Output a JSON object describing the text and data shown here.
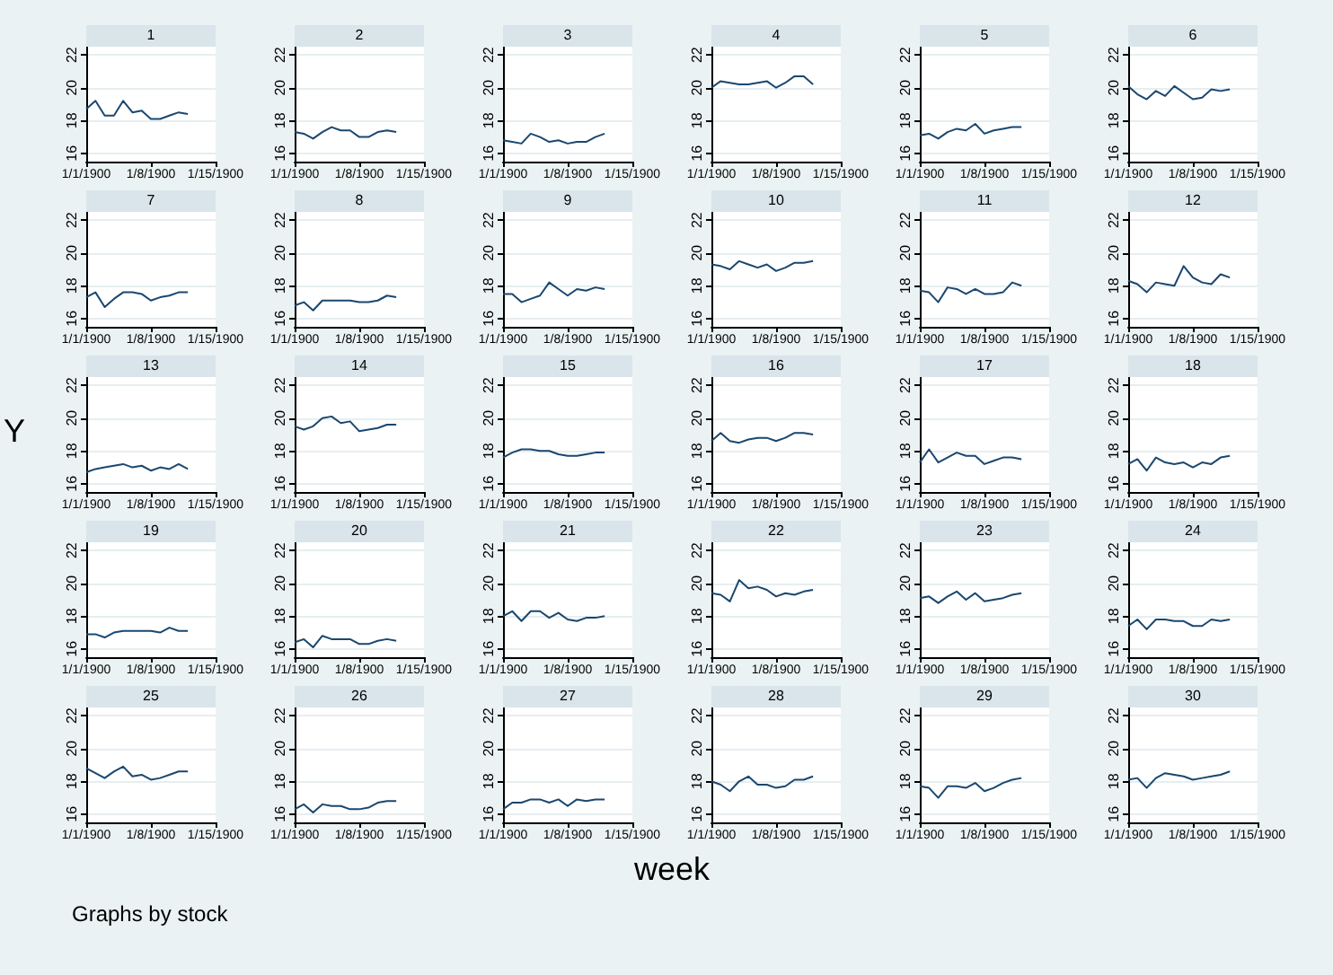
{
  "chart_data": [
    {
      "type": "line",
      "title": "1",
      "values": [
        18.7,
        19.2,
        18.3,
        18.3,
        19.2,
        18.5,
        18.6,
        18.1,
        18.1,
        18.3,
        18.5,
        18.4
      ],
      "color": "#1a476f",
      "x": [
        "1900-01-01",
        "1900-01-02",
        "1900-01-03",
        "1900-01-04",
        "1900-01-05",
        "1900-01-06",
        "1900-01-07",
        "1900-01-08",
        "1900-01-09",
        "1900-01-10",
        "1900-01-11",
        "1900-01-12"
      ],
      "xlim": [
        "1900-01-01",
        "1900-01-15"
      ],
      "xticks": [
        {
          "value": "1900-01-01",
          "label": "1/1/1900"
        },
        {
          "value": "1900-01-08",
          "label": "1/8/1900"
        },
        {
          "value": "1900-01-15",
          "label": "1/15/1900"
        }
      ],
      "ylim": [
        15.5,
        22.5
      ],
      "yticks": [
        16,
        18,
        20,
        22
      ],
      "grid": "y"
    },
    {
      "type": "line",
      "title": "2",
      "values": [
        17.3,
        17.2,
        16.9,
        17.3,
        17.6,
        17.4,
        17.4,
        17.0,
        17.0,
        17.3,
        17.4,
        17.3
      ],
      "color": "#1a476f",
      "x": [
        "1900-01-01",
        "1900-01-02",
        "1900-01-03",
        "1900-01-04",
        "1900-01-05",
        "1900-01-06",
        "1900-01-07",
        "1900-01-08",
        "1900-01-09",
        "1900-01-10",
        "1900-01-11",
        "1900-01-12"
      ],
      "xlim": [
        "1900-01-01",
        "1900-01-15"
      ],
      "xticks": [
        {
          "value": "1900-01-01",
          "label": "1/1/1900"
        },
        {
          "value": "1900-01-08",
          "label": "1/8/1900"
        },
        {
          "value": "1900-01-15",
          "label": "1/15/1900"
        }
      ],
      "ylim": [
        15.5,
        22.5
      ],
      "yticks": [
        16,
        18,
        20,
        22
      ],
      "grid": "y"
    },
    {
      "type": "line",
      "title": "3",
      "values": [
        16.8,
        16.7,
        16.6,
        17.2,
        17.0,
        16.7,
        16.8,
        16.6,
        16.7,
        16.7,
        17.0,
        17.2
      ],
      "color": "#1a476f",
      "x": [
        "1900-01-01",
        "1900-01-02",
        "1900-01-03",
        "1900-01-04",
        "1900-01-05",
        "1900-01-06",
        "1900-01-07",
        "1900-01-08",
        "1900-01-09",
        "1900-01-10",
        "1900-01-11",
        "1900-01-12"
      ],
      "xlim": [
        "1900-01-01",
        "1900-01-15"
      ],
      "xticks": [
        {
          "value": "1900-01-01",
          "label": "1/1/1900"
        },
        {
          "value": "1900-01-08",
          "label": "1/8/1900"
        },
        {
          "value": "1900-01-15",
          "label": "1/15/1900"
        }
      ],
      "ylim": [
        15.5,
        22.5
      ],
      "yticks": [
        16,
        18,
        20,
        22
      ],
      "grid": "y"
    },
    {
      "type": "line",
      "title": "4",
      "values": [
        20.0,
        20.4,
        20.3,
        20.2,
        20.2,
        20.3,
        20.4,
        20.0,
        20.3,
        20.7,
        20.7,
        20.2
      ],
      "color": "#1a476f",
      "x": [
        "1900-01-01",
        "1900-01-02",
        "1900-01-03",
        "1900-01-04",
        "1900-01-05",
        "1900-01-06",
        "1900-01-07",
        "1900-01-08",
        "1900-01-09",
        "1900-01-10",
        "1900-01-11",
        "1900-01-12"
      ],
      "xlim": [
        "1900-01-01",
        "1900-01-15"
      ],
      "xticks": [
        {
          "value": "1900-01-01",
          "label": "1/1/1900"
        },
        {
          "value": "1900-01-08",
          "label": "1/8/1900"
        },
        {
          "value": "1900-01-15",
          "label": "1/15/1900"
        }
      ],
      "ylim": [
        15.5,
        22.5
      ],
      "yticks": [
        16,
        18,
        20,
        22
      ],
      "grid": "y"
    },
    {
      "type": "line",
      "title": "5",
      "values": [
        17.1,
        17.2,
        16.9,
        17.3,
        17.5,
        17.4,
        17.8,
        17.2,
        17.4,
        17.5,
        17.6,
        17.6
      ],
      "color": "#1a476f",
      "x": [
        "1900-01-01",
        "1900-01-02",
        "1900-01-03",
        "1900-01-04",
        "1900-01-05",
        "1900-01-06",
        "1900-01-07",
        "1900-01-08",
        "1900-01-09",
        "1900-01-10",
        "1900-01-11",
        "1900-01-12"
      ],
      "xlim": [
        "1900-01-01",
        "1900-01-15"
      ],
      "xticks": [
        {
          "value": "1900-01-01",
          "label": "1/1/1900"
        },
        {
          "value": "1900-01-08",
          "label": "1/8/1900"
        },
        {
          "value": "1900-01-15",
          "label": "1/15/1900"
        }
      ],
      "ylim": [
        15.5,
        22.5
      ],
      "yticks": [
        16,
        18,
        20,
        22
      ],
      "grid": "y"
    },
    {
      "type": "line",
      "title": "6",
      "values": [
        20.1,
        19.6,
        19.3,
        19.8,
        19.5,
        20.1,
        19.7,
        19.3,
        19.4,
        19.9,
        19.8,
        19.9
      ],
      "color": "#1a476f",
      "x": [
        "1900-01-01",
        "1900-01-02",
        "1900-01-03",
        "1900-01-04",
        "1900-01-05",
        "1900-01-06",
        "1900-01-07",
        "1900-01-08",
        "1900-01-09",
        "1900-01-10",
        "1900-01-11",
        "1900-01-12"
      ],
      "xlim": [
        "1900-01-01",
        "1900-01-15"
      ],
      "xticks": [
        {
          "value": "1900-01-01",
          "label": "1/1/1900"
        },
        {
          "value": "1900-01-08",
          "label": "1/8/1900"
        },
        {
          "value": "1900-01-15",
          "label": "1/15/1900"
        }
      ],
      "ylim": [
        15.5,
        22.5
      ],
      "yticks": [
        16,
        18,
        20,
        22
      ],
      "grid": "y"
    },
    {
      "type": "line",
      "title": "7",
      "values": [
        17.3,
        17.6,
        16.7,
        17.2,
        17.6,
        17.6,
        17.5,
        17.1,
        17.3,
        17.4,
        17.6,
        17.6
      ],
      "color": "#1a476f",
      "x": [
        "1900-01-01",
        "1900-01-02",
        "1900-01-03",
        "1900-01-04",
        "1900-01-05",
        "1900-01-06",
        "1900-01-07",
        "1900-01-08",
        "1900-01-09",
        "1900-01-10",
        "1900-01-11",
        "1900-01-12"
      ],
      "xlim": [
        "1900-01-01",
        "1900-01-15"
      ],
      "xticks": [
        {
          "value": "1900-01-01",
          "label": "1/1/1900"
        },
        {
          "value": "1900-01-08",
          "label": "1/8/1900"
        },
        {
          "value": "1900-01-15",
          "label": "1/15/1900"
        }
      ],
      "ylim": [
        15.5,
        22.5
      ],
      "yticks": [
        16,
        18,
        20,
        22
      ],
      "grid": "y"
    },
    {
      "type": "line",
      "title": "8",
      "values": [
        16.8,
        17.0,
        16.5,
        17.1,
        17.1,
        17.1,
        17.1,
        17.0,
        17.0,
        17.1,
        17.4,
        17.3
      ],
      "color": "#1a476f",
      "x": [
        "1900-01-01",
        "1900-01-02",
        "1900-01-03",
        "1900-01-04",
        "1900-01-05",
        "1900-01-06",
        "1900-01-07",
        "1900-01-08",
        "1900-01-09",
        "1900-01-10",
        "1900-01-11",
        "1900-01-12"
      ],
      "xlim": [
        "1900-01-01",
        "1900-01-15"
      ],
      "xticks": [
        {
          "value": "1900-01-01",
          "label": "1/1/1900"
        },
        {
          "value": "1900-01-08",
          "label": "1/8/1900"
        },
        {
          "value": "1900-01-15",
          "label": "1/15/1900"
        }
      ],
      "ylim": [
        15.5,
        22.5
      ],
      "yticks": [
        16,
        18,
        20,
        22
      ],
      "grid": "y"
    },
    {
      "type": "line",
      "title": "9",
      "values": [
        17.5,
        17.5,
        17.0,
        17.2,
        17.4,
        18.2,
        17.8,
        17.4,
        17.8,
        17.7,
        17.9,
        17.8
      ],
      "color": "#1a476f",
      "x": [
        "1900-01-01",
        "1900-01-02",
        "1900-01-03",
        "1900-01-04",
        "1900-01-05",
        "1900-01-06",
        "1900-01-07",
        "1900-01-08",
        "1900-01-09",
        "1900-01-10",
        "1900-01-11",
        "1900-01-12"
      ],
      "xlim": [
        "1900-01-01",
        "1900-01-15"
      ],
      "xticks": [
        {
          "value": "1900-01-01",
          "label": "1/1/1900"
        },
        {
          "value": "1900-01-08",
          "label": "1/8/1900"
        },
        {
          "value": "1900-01-15",
          "label": "1/15/1900"
        }
      ],
      "ylim": [
        15.5,
        22.5
      ],
      "yticks": [
        16,
        18,
        20,
        22
      ],
      "grid": "y"
    },
    {
      "type": "line",
      "title": "10",
      "values": [
        19.3,
        19.2,
        19.0,
        19.5,
        19.3,
        19.1,
        19.3,
        18.9,
        19.1,
        19.4,
        19.4,
        19.5
      ],
      "color": "#1a476f",
      "x": [
        "1900-01-01",
        "1900-01-02",
        "1900-01-03",
        "1900-01-04",
        "1900-01-05",
        "1900-01-06",
        "1900-01-07",
        "1900-01-08",
        "1900-01-09",
        "1900-01-10",
        "1900-01-11",
        "1900-01-12"
      ],
      "xlim": [
        "1900-01-01",
        "1900-01-15"
      ],
      "xticks": [
        {
          "value": "1900-01-01",
          "label": "1/1/1900"
        },
        {
          "value": "1900-01-08",
          "label": "1/8/1900"
        },
        {
          "value": "1900-01-15",
          "label": "1/15/1900"
        }
      ],
      "ylim": [
        15.5,
        22.5
      ],
      "yticks": [
        16,
        18,
        20,
        22
      ],
      "grid": "y"
    },
    {
      "type": "line",
      "title": "11",
      "values": [
        17.7,
        17.6,
        17.0,
        17.9,
        17.8,
        17.5,
        17.8,
        17.5,
        17.5,
        17.6,
        18.2,
        18.0
      ],
      "color": "#1a476f",
      "x": [
        "1900-01-01",
        "1900-01-02",
        "1900-01-03",
        "1900-01-04",
        "1900-01-05",
        "1900-01-06",
        "1900-01-07",
        "1900-01-08",
        "1900-01-09",
        "1900-01-10",
        "1900-01-11",
        "1900-01-12"
      ],
      "xlim": [
        "1900-01-01",
        "1900-01-15"
      ],
      "xticks": [
        {
          "value": "1900-01-01",
          "label": "1/1/1900"
        },
        {
          "value": "1900-01-08",
          "label": "1/8/1900"
        },
        {
          "value": "1900-01-15",
          "label": "1/15/1900"
        }
      ],
      "ylim": [
        15.5,
        22.5
      ],
      "yticks": [
        16,
        18,
        20,
        22
      ],
      "grid": "y"
    },
    {
      "type": "line",
      "title": "12",
      "values": [
        18.3,
        18.1,
        17.6,
        18.2,
        18.1,
        18.0,
        19.2,
        18.5,
        18.2,
        18.1,
        18.7,
        18.5
      ],
      "color": "#1a476f",
      "x": [
        "1900-01-01",
        "1900-01-02",
        "1900-01-03",
        "1900-01-04",
        "1900-01-05",
        "1900-01-06",
        "1900-01-07",
        "1900-01-08",
        "1900-01-09",
        "1900-01-10",
        "1900-01-11",
        "1900-01-12"
      ],
      "xlim": [
        "1900-01-01",
        "1900-01-15"
      ],
      "xticks": [
        {
          "value": "1900-01-01",
          "label": "1/1/1900"
        },
        {
          "value": "1900-01-08",
          "label": "1/8/1900"
        },
        {
          "value": "1900-01-15",
          "label": "1/15/1900"
        }
      ],
      "ylim": [
        15.5,
        22.5
      ],
      "yticks": [
        16,
        18,
        20,
        22
      ],
      "grid": "y"
    },
    {
      "type": "line",
      "title": "13",
      "ylabel": "Y",
      "values": [
        16.7,
        16.9,
        17.0,
        17.1,
        17.2,
        17.0,
        17.1,
        16.8,
        17.0,
        16.9,
        17.2,
        16.9
      ],
      "color": "#1a476f",
      "x": [
        "1900-01-01",
        "1900-01-02",
        "1900-01-03",
        "1900-01-04",
        "1900-01-05",
        "1900-01-06",
        "1900-01-07",
        "1900-01-08",
        "1900-01-09",
        "1900-01-10",
        "1900-01-11",
        "1900-01-12"
      ],
      "xlim": [
        "1900-01-01",
        "1900-01-15"
      ],
      "xticks": [
        {
          "value": "1900-01-01",
          "label": "1/1/1900"
        },
        {
          "value": "1900-01-08",
          "label": "1/8/1900"
        },
        {
          "value": "1900-01-15",
          "label": "1/15/1900"
        }
      ],
      "ylim": [
        15.5,
        22.5
      ],
      "yticks": [
        16,
        18,
        20,
        22
      ],
      "grid": "y"
    },
    {
      "type": "line",
      "title": "14",
      "values": [
        19.5,
        19.3,
        19.5,
        20.0,
        20.1,
        19.7,
        19.8,
        19.2,
        19.3,
        19.4,
        19.6,
        19.6
      ],
      "color": "#1a476f",
      "x": [
        "1900-01-01",
        "1900-01-02",
        "1900-01-03",
        "1900-01-04",
        "1900-01-05",
        "1900-01-06",
        "1900-01-07",
        "1900-01-08",
        "1900-01-09",
        "1900-01-10",
        "1900-01-11",
        "1900-01-12"
      ],
      "xlim": [
        "1900-01-01",
        "1900-01-15"
      ],
      "xticks": [
        {
          "value": "1900-01-01",
          "label": "1/1/1900"
        },
        {
          "value": "1900-01-08",
          "label": "1/8/1900"
        },
        {
          "value": "1900-01-15",
          "label": "1/15/1900"
        }
      ],
      "ylim": [
        15.5,
        22.5
      ],
      "yticks": [
        16,
        18,
        20,
        22
      ],
      "grid": "y"
    },
    {
      "type": "line",
      "title": "15",
      "values": [
        17.6,
        17.9,
        18.1,
        18.1,
        18.0,
        18.0,
        17.8,
        17.7,
        17.7,
        17.8,
        17.9,
        17.9
      ],
      "color": "#1a476f",
      "x": [
        "1900-01-01",
        "1900-01-02",
        "1900-01-03",
        "1900-01-04",
        "1900-01-05",
        "1900-01-06",
        "1900-01-07",
        "1900-01-08",
        "1900-01-09",
        "1900-01-10",
        "1900-01-11",
        "1900-01-12"
      ],
      "xlim": [
        "1900-01-01",
        "1900-01-15"
      ],
      "xticks": [
        {
          "value": "1900-01-01",
          "label": "1/1/1900"
        },
        {
          "value": "1900-01-08",
          "label": "1/8/1900"
        },
        {
          "value": "1900-01-15",
          "label": "1/15/1900"
        }
      ],
      "ylim": [
        15.5,
        22.5
      ],
      "yticks": [
        16,
        18,
        20,
        22
      ],
      "grid": "y"
    },
    {
      "type": "line",
      "title": "16",
      "values": [
        18.6,
        19.1,
        18.6,
        18.5,
        18.7,
        18.8,
        18.8,
        18.6,
        18.8,
        19.1,
        19.1,
        19.0
      ],
      "color": "#1a476f",
      "x": [
        "1900-01-01",
        "1900-01-02",
        "1900-01-03",
        "1900-01-04",
        "1900-01-05",
        "1900-01-06",
        "1900-01-07",
        "1900-01-08",
        "1900-01-09",
        "1900-01-10",
        "1900-01-11",
        "1900-01-12"
      ],
      "xlim": [
        "1900-01-01",
        "1900-01-15"
      ],
      "xticks": [
        {
          "value": "1900-01-01",
          "label": "1/1/1900"
        },
        {
          "value": "1900-01-08",
          "label": "1/8/1900"
        },
        {
          "value": "1900-01-15",
          "label": "1/15/1900"
        }
      ],
      "ylim": [
        15.5,
        22.5
      ],
      "yticks": [
        16,
        18,
        20,
        22
      ],
      "grid": "y"
    },
    {
      "type": "line",
      "title": "17",
      "values": [
        17.3,
        18.1,
        17.3,
        17.6,
        17.9,
        17.7,
        17.7,
        17.2,
        17.4,
        17.6,
        17.6,
        17.5
      ],
      "color": "#1a476f",
      "x": [
        "1900-01-01",
        "1900-01-02",
        "1900-01-03",
        "1900-01-04",
        "1900-01-05",
        "1900-01-06",
        "1900-01-07",
        "1900-01-08",
        "1900-01-09",
        "1900-01-10",
        "1900-01-11",
        "1900-01-12"
      ],
      "xlim": [
        "1900-01-01",
        "1900-01-15"
      ],
      "xticks": [
        {
          "value": "1900-01-01",
          "label": "1/1/1900"
        },
        {
          "value": "1900-01-08",
          "label": "1/8/1900"
        },
        {
          "value": "1900-01-15",
          "label": "1/15/1900"
        }
      ],
      "ylim": [
        15.5,
        22.5
      ],
      "yticks": [
        16,
        18,
        20,
        22
      ],
      "grid": "y"
    },
    {
      "type": "line",
      "title": "18",
      "values": [
        17.2,
        17.5,
        16.8,
        17.6,
        17.3,
        17.2,
        17.3,
        17.0,
        17.3,
        17.2,
        17.6,
        17.7
      ],
      "color": "#1a476f",
      "x": [
        "1900-01-01",
        "1900-01-02",
        "1900-01-03",
        "1900-01-04",
        "1900-01-05",
        "1900-01-06",
        "1900-01-07",
        "1900-01-08",
        "1900-01-09",
        "1900-01-10",
        "1900-01-11",
        "1900-01-12"
      ],
      "xlim": [
        "1900-01-01",
        "1900-01-15"
      ],
      "xticks": [
        {
          "value": "1900-01-01",
          "label": "1/1/1900"
        },
        {
          "value": "1900-01-08",
          "label": "1/8/1900"
        },
        {
          "value": "1900-01-15",
          "label": "1/15/1900"
        }
      ],
      "ylim": [
        15.5,
        22.5
      ],
      "yticks": [
        16,
        18,
        20,
        22
      ],
      "grid": "y"
    },
    {
      "type": "line",
      "title": "19",
      "values": [
        16.9,
        16.9,
        16.7,
        17.0,
        17.1,
        17.1,
        17.1,
        17.1,
        17.0,
        17.3,
        17.1,
        17.1
      ],
      "color": "#1a476f",
      "x": [
        "1900-01-01",
        "1900-01-02",
        "1900-01-03",
        "1900-01-04",
        "1900-01-05",
        "1900-01-06",
        "1900-01-07",
        "1900-01-08",
        "1900-01-09",
        "1900-01-10",
        "1900-01-11",
        "1900-01-12"
      ],
      "xlim": [
        "1900-01-01",
        "1900-01-15"
      ],
      "xticks": [
        {
          "value": "1900-01-01",
          "label": "1/1/1900"
        },
        {
          "value": "1900-01-08",
          "label": "1/8/1900"
        },
        {
          "value": "1900-01-15",
          "label": "1/15/1900"
        }
      ],
      "ylim": [
        15.5,
        22.5
      ],
      "yticks": [
        16,
        18,
        20,
        22
      ],
      "grid": "y"
    },
    {
      "type": "line",
      "title": "20",
      "values": [
        16.4,
        16.6,
        16.1,
        16.8,
        16.6,
        16.6,
        16.6,
        16.3,
        16.3,
        16.5,
        16.6,
        16.5
      ],
      "color": "#1a476f",
      "x": [
        "1900-01-01",
        "1900-01-02",
        "1900-01-03",
        "1900-01-04",
        "1900-01-05",
        "1900-01-06",
        "1900-01-07",
        "1900-01-08",
        "1900-01-09",
        "1900-01-10",
        "1900-01-11",
        "1900-01-12"
      ],
      "xlim": [
        "1900-01-01",
        "1900-01-15"
      ],
      "xticks": [
        {
          "value": "1900-01-01",
          "label": "1/1/1900"
        },
        {
          "value": "1900-01-08",
          "label": "1/8/1900"
        },
        {
          "value": "1900-01-15",
          "label": "1/15/1900"
        }
      ],
      "ylim": [
        15.5,
        22.5
      ],
      "yticks": [
        16,
        18,
        20,
        22
      ],
      "grid": "y"
    },
    {
      "type": "line",
      "title": "21",
      "values": [
        18.0,
        18.3,
        17.7,
        18.3,
        18.3,
        17.9,
        18.2,
        17.8,
        17.7,
        17.9,
        17.9,
        18.0
      ],
      "color": "#1a476f",
      "x": [
        "1900-01-01",
        "1900-01-02",
        "1900-01-03",
        "1900-01-04",
        "1900-01-05",
        "1900-01-06",
        "1900-01-07",
        "1900-01-08",
        "1900-01-09",
        "1900-01-10",
        "1900-01-11",
        "1900-01-12"
      ],
      "xlim": [
        "1900-01-01",
        "1900-01-15"
      ],
      "xticks": [
        {
          "value": "1900-01-01",
          "label": "1/1/1900"
        },
        {
          "value": "1900-01-08",
          "label": "1/8/1900"
        },
        {
          "value": "1900-01-15",
          "label": "1/15/1900"
        }
      ],
      "ylim": [
        15.5,
        22.5
      ],
      "yticks": [
        16,
        18,
        20,
        22
      ],
      "grid": "y"
    },
    {
      "type": "line",
      "title": "22",
      "values": [
        19.4,
        19.3,
        18.9,
        20.2,
        19.7,
        19.8,
        19.6,
        19.2,
        19.4,
        19.3,
        19.5,
        19.6
      ],
      "color": "#1a476f",
      "x": [
        "1900-01-01",
        "1900-01-02",
        "1900-01-03",
        "1900-01-04",
        "1900-01-05",
        "1900-01-06",
        "1900-01-07",
        "1900-01-08",
        "1900-01-09",
        "1900-01-10",
        "1900-01-11",
        "1900-01-12"
      ],
      "xlim": [
        "1900-01-01",
        "1900-01-15"
      ],
      "xticks": [
        {
          "value": "1900-01-01",
          "label": "1/1/1900"
        },
        {
          "value": "1900-01-08",
          "label": "1/8/1900"
        },
        {
          "value": "1900-01-15",
          "label": "1/15/1900"
        }
      ],
      "ylim": [
        15.5,
        22.5
      ],
      "yticks": [
        16,
        18,
        20,
        22
      ],
      "grid": "y"
    },
    {
      "type": "line",
      "title": "23",
      "values": [
        19.1,
        19.2,
        18.8,
        19.2,
        19.5,
        19.0,
        19.4,
        18.9,
        19.0,
        19.1,
        19.3,
        19.4
      ],
      "color": "#1a476f",
      "x": [
        "1900-01-01",
        "1900-01-02",
        "1900-01-03",
        "1900-01-04",
        "1900-01-05",
        "1900-01-06",
        "1900-01-07",
        "1900-01-08",
        "1900-01-09",
        "1900-01-10",
        "1900-01-11",
        "1900-01-12"
      ],
      "xlim": [
        "1900-01-01",
        "1900-01-15"
      ],
      "xticks": [
        {
          "value": "1900-01-01",
          "label": "1/1/1900"
        },
        {
          "value": "1900-01-08",
          "label": "1/8/1900"
        },
        {
          "value": "1900-01-15",
          "label": "1/15/1900"
        }
      ],
      "ylim": [
        15.5,
        22.5
      ],
      "yticks": [
        16,
        18,
        20,
        22
      ],
      "grid": "y"
    },
    {
      "type": "line",
      "title": "24",
      "values": [
        17.4,
        17.8,
        17.2,
        17.8,
        17.8,
        17.7,
        17.7,
        17.4,
        17.4,
        17.8,
        17.7,
        17.8
      ],
      "color": "#1a476f",
      "x": [
        "1900-01-01",
        "1900-01-02",
        "1900-01-03",
        "1900-01-04",
        "1900-01-05",
        "1900-01-06",
        "1900-01-07",
        "1900-01-08",
        "1900-01-09",
        "1900-01-10",
        "1900-01-11",
        "1900-01-12"
      ],
      "xlim": [
        "1900-01-01",
        "1900-01-15"
      ],
      "xticks": [
        {
          "value": "1900-01-01",
          "label": "1/1/1900"
        },
        {
          "value": "1900-01-08",
          "label": "1/8/1900"
        },
        {
          "value": "1900-01-15",
          "label": "1/15/1900"
        }
      ],
      "ylim": [
        15.5,
        22.5
      ],
      "yticks": [
        16,
        18,
        20,
        22
      ],
      "grid": "y"
    },
    {
      "type": "line",
      "title": "25",
      "annotations": [
        "Graphs by stock"
      ],
      "values": [
        18.8,
        18.5,
        18.2,
        18.6,
        18.9,
        18.3,
        18.4,
        18.1,
        18.2,
        18.4,
        18.6,
        18.6
      ],
      "color": "#1a476f",
      "x": [
        "1900-01-01",
        "1900-01-02",
        "1900-01-03",
        "1900-01-04",
        "1900-01-05",
        "1900-01-06",
        "1900-01-07",
        "1900-01-08",
        "1900-01-09",
        "1900-01-10",
        "1900-01-11",
        "1900-01-12"
      ],
      "xlim": [
        "1900-01-01",
        "1900-01-15"
      ],
      "xticks": [
        {
          "value": "1900-01-01",
          "label": "1/1/1900"
        },
        {
          "value": "1900-01-08",
          "label": "1/8/1900"
        },
        {
          "value": "1900-01-15",
          "label": "1/15/1900"
        }
      ],
      "ylim": [
        15.5,
        22.5
      ],
      "yticks": [
        16,
        18,
        20,
        22
      ],
      "grid": "y"
    },
    {
      "type": "line",
      "title": "26",
      "values": [
        16.3,
        16.6,
        16.1,
        16.6,
        16.5,
        16.5,
        16.3,
        16.3,
        16.4,
        16.7,
        16.8,
        16.8
      ],
      "color": "#1a476f",
      "x": [
        "1900-01-01",
        "1900-01-02",
        "1900-01-03",
        "1900-01-04",
        "1900-01-05",
        "1900-01-06",
        "1900-01-07",
        "1900-01-08",
        "1900-01-09",
        "1900-01-10",
        "1900-01-11",
        "1900-01-12"
      ],
      "xlim": [
        "1900-01-01",
        "1900-01-15"
      ],
      "xticks": [
        {
          "value": "1900-01-01",
          "label": "1/1/1900"
        },
        {
          "value": "1900-01-08",
          "label": "1/8/1900"
        },
        {
          "value": "1900-01-15",
          "label": "1/15/1900"
        }
      ],
      "ylim": [
        15.5,
        22.5
      ],
      "yticks": [
        16,
        18,
        20,
        22
      ],
      "grid": "y"
    },
    {
      "type": "line",
      "title": "27",
      "values": [
        16.3,
        16.7,
        16.7,
        16.9,
        16.9,
        16.7,
        16.9,
        16.5,
        16.9,
        16.8,
        16.9,
        16.9
      ],
      "color": "#1a476f",
      "x": [
        "1900-01-01",
        "1900-01-02",
        "1900-01-03",
        "1900-01-04",
        "1900-01-05",
        "1900-01-06",
        "1900-01-07",
        "1900-01-08",
        "1900-01-09",
        "1900-01-10",
        "1900-01-11",
        "1900-01-12"
      ],
      "xlim": [
        "1900-01-01",
        "1900-01-15"
      ],
      "xticks": [
        {
          "value": "1900-01-01",
          "label": "1/1/1900"
        },
        {
          "value": "1900-01-08",
          "label": "1/8/1900"
        },
        {
          "value": "1900-01-15",
          "label": "1/15/1900"
        }
      ],
      "ylim": [
        15.5,
        22.5
      ],
      "yticks": [
        16,
        18,
        20,
        22
      ],
      "grid": "y"
    },
    {
      "type": "line",
      "title": "28",
      "xlabel": "week",
      "values": [
        18.0,
        17.8,
        17.4,
        18.0,
        18.3,
        17.8,
        17.8,
        17.6,
        17.7,
        18.1,
        18.1,
        18.3
      ],
      "color": "#1a476f",
      "x": [
        "1900-01-01",
        "1900-01-02",
        "1900-01-03",
        "1900-01-04",
        "1900-01-05",
        "1900-01-06",
        "1900-01-07",
        "1900-01-08",
        "1900-01-09",
        "1900-01-10",
        "1900-01-11",
        "1900-01-12"
      ],
      "xlim": [
        "1900-01-01",
        "1900-01-15"
      ],
      "xticks": [
        {
          "value": "1900-01-01",
          "label": "1/1/1900"
        },
        {
          "value": "1900-01-08",
          "label": "1/8/1900"
        },
        {
          "value": "1900-01-15",
          "label": "1/15/1900"
        }
      ],
      "ylim": [
        15.5,
        22.5
      ],
      "yticks": [
        16,
        18,
        20,
        22
      ],
      "grid": "y"
    },
    {
      "type": "line",
      "title": "29",
      "values": [
        17.7,
        17.6,
        17.0,
        17.7,
        17.7,
        17.6,
        17.9,
        17.4,
        17.6,
        17.9,
        18.1,
        18.2
      ],
      "color": "#1a476f",
      "x": [
        "1900-01-01",
        "1900-01-02",
        "1900-01-03",
        "1900-01-04",
        "1900-01-05",
        "1900-01-06",
        "1900-01-07",
        "1900-01-08",
        "1900-01-09",
        "1900-01-10",
        "1900-01-11",
        "1900-01-12"
      ],
      "xlim": [
        "1900-01-01",
        "1900-01-15"
      ],
      "xticks": [
        {
          "value": "1900-01-01",
          "label": "1/1/1900"
        },
        {
          "value": "1900-01-08",
          "label": "1/8/1900"
        },
        {
          "value": "1900-01-15",
          "label": "1/15/1900"
        }
      ],
      "ylim": [
        15.5,
        22.5
      ],
      "yticks": [
        16,
        18,
        20,
        22
      ],
      "grid": "y"
    },
    {
      "type": "line",
      "title": "30",
      "values": [
        18.1,
        18.2,
        17.6,
        18.2,
        18.5,
        18.4,
        18.3,
        18.1,
        18.2,
        18.3,
        18.4,
        18.6
      ],
      "color": "#1a476f",
      "x": [
        "1900-01-01",
        "1900-01-02",
        "1900-01-03",
        "1900-01-04",
        "1900-01-05",
        "1900-01-06",
        "1900-01-07",
        "1900-01-08",
        "1900-01-09",
        "1900-01-10",
        "1900-01-11",
        "1900-01-12"
      ],
      "xlim": [
        "1900-01-01",
        "1900-01-15"
      ],
      "xticks": [
        {
          "value": "1900-01-01",
          "label": "1/1/1900"
        },
        {
          "value": "1900-01-08",
          "label": "1/8/1900"
        },
        {
          "value": "1900-01-15",
          "label": "1/15/1900"
        }
      ],
      "ylim": [
        15.5,
        22.5
      ],
      "yticks": [
        16,
        18,
        20,
        22
      ],
      "grid": "y"
    }
  ]
}
